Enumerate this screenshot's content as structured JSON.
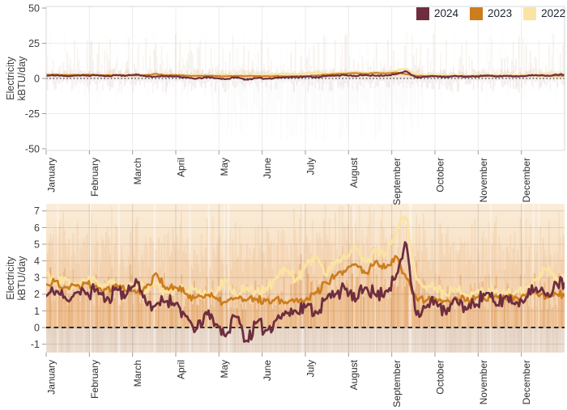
{
  "figure": {
    "description": "Daily electricity use comparison by year"
  },
  "legend": {
    "position": "top-right"
  },
  "chart_data": {
    "type": "line",
    "title": "",
    "xlabel": "",
    "x_months": [
      "January",
      "February",
      "March",
      "April",
      "May",
      "June",
      "July",
      "August",
      "September",
      "October",
      "November",
      "December"
    ],
    "panels": [
      {
        "id": "overview",
        "ylabel_line1": "Electricity",
        "ylabel_line2": "kBTU/day",
        "ylim": [
          -50,
          50
        ],
        "ytick_labels": [
          "50",
          "25",
          "0",
          "-25",
          "-50"
        ],
        "yticks": [
          50,
          25,
          0,
          -25,
          -50
        ],
        "zero_line": {
          "value": 0,
          "style": "dotted"
        },
        "grid": true,
        "background": "raw interval readings shown as faint vertical strips"
      },
      {
        "id": "detail",
        "ylabel_line1": "Electricity",
        "ylabel_line2": "kBTU/day",
        "ylim": [
          -1.6,
          7.3
        ],
        "ytick_labels": [
          "7",
          "6",
          "5",
          "4",
          "3",
          "2",
          "1",
          "0",
          "-1"
        ],
        "yticks": [
          7,
          6,
          5,
          4,
          3,
          2,
          1,
          0,
          -1
        ],
        "zero_line": {
          "value": 0,
          "style": "dashed"
        },
        "grid": true,
        "background": "raw interval readings shown as orange vertical strips"
      }
    ],
    "x_sampling": "weekly anchor values (kBTU/day), Jan through Dec",
    "series": [
      {
        "name": "2024",
        "color": "#6e2e3e",
        "weekly_values": [
          1.9,
          2.2,
          1.7,
          2.1,
          2.0,
          2.3,
          1.6,
          2.4,
          1.9,
          2.9,
          1.5,
          1.3,
          1.6,
          1.5,
          0.6,
          -0.2,
          0.9,
          0.2,
          -0.5,
          0.8,
          -0.9,
          0.3,
          -0.2,
          0.5,
          0.9,
          1.0,
          1.3,
          0.9,
          1.7,
          2.1,
          2.3,
          1.6,
          2.5,
          1.9,
          2.2,
          3.0,
          5.2,
          0.8,
          1.2,
          1.6,
          0.8,
          1.7,
          1.1,
          1.4,
          2.1,
          1.3,
          1.9,
          1.5,
          1.8,
          2.4,
          1.9,
          2.7
        ]
      },
      {
        "name": "2023",
        "color": "#cc7d1d",
        "weekly_values": [
          2.6,
          2.8,
          2.4,
          2.5,
          2.7,
          2.5,
          2.3,
          2.6,
          2.2,
          2.1,
          2.4,
          3.3,
          2.3,
          2.4,
          2.0,
          1.8,
          2.0,
          1.7,
          1.5,
          1.8,
          1.6,
          1.7,
          1.6,
          1.8,
          1.5,
          1.7,
          1.7,
          2.1,
          2.7,
          3.1,
          3.4,
          3.8,
          3.2,
          4.0,
          3.6,
          4.3,
          3.0,
          1.8,
          1.6,
          1.7,
          1.6,
          1.8,
          1.6,
          1.8,
          1.6,
          1.9,
          1.7,
          1.8,
          1.9,
          2.1,
          1.8,
          2.0
        ]
      },
      {
        "name": "2022",
        "color": "#fbe3a3",
        "weekly_values": [
          3.3,
          2.7,
          2.9,
          2.5,
          2.8,
          2.8,
          2.4,
          2.7,
          2.3,
          2.5,
          2.2,
          2.6,
          2.1,
          2.4,
          2.0,
          2.3,
          2.0,
          2.0,
          2.9,
          1.9,
          2.4,
          2.1,
          2.3,
          3.0,
          3.5,
          2.8,
          3.8,
          4.3,
          3.1,
          4.0,
          4.2,
          4.8,
          3.9,
          4.7,
          4.4,
          5.6,
          6.8,
          2.9,
          2.3,
          2.4,
          1.9,
          2.3,
          2.0,
          2.1,
          1.9,
          2.3,
          2.0,
          2.2,
          2.4,
          2.9,
          3.5,
          3.0
        ]
      }
    ],
    "colors": {
      "axis_text": "#3c3c3c",
      "month_text": "#2e2e2e",
      "gridline": "#ececec",
      "panel_border": "#d8d8d8",
      "zero_line": "#141414",
      "strip_warm": "#dd9246",
      "strip_below": "#cfae92"
    }
  }
}
